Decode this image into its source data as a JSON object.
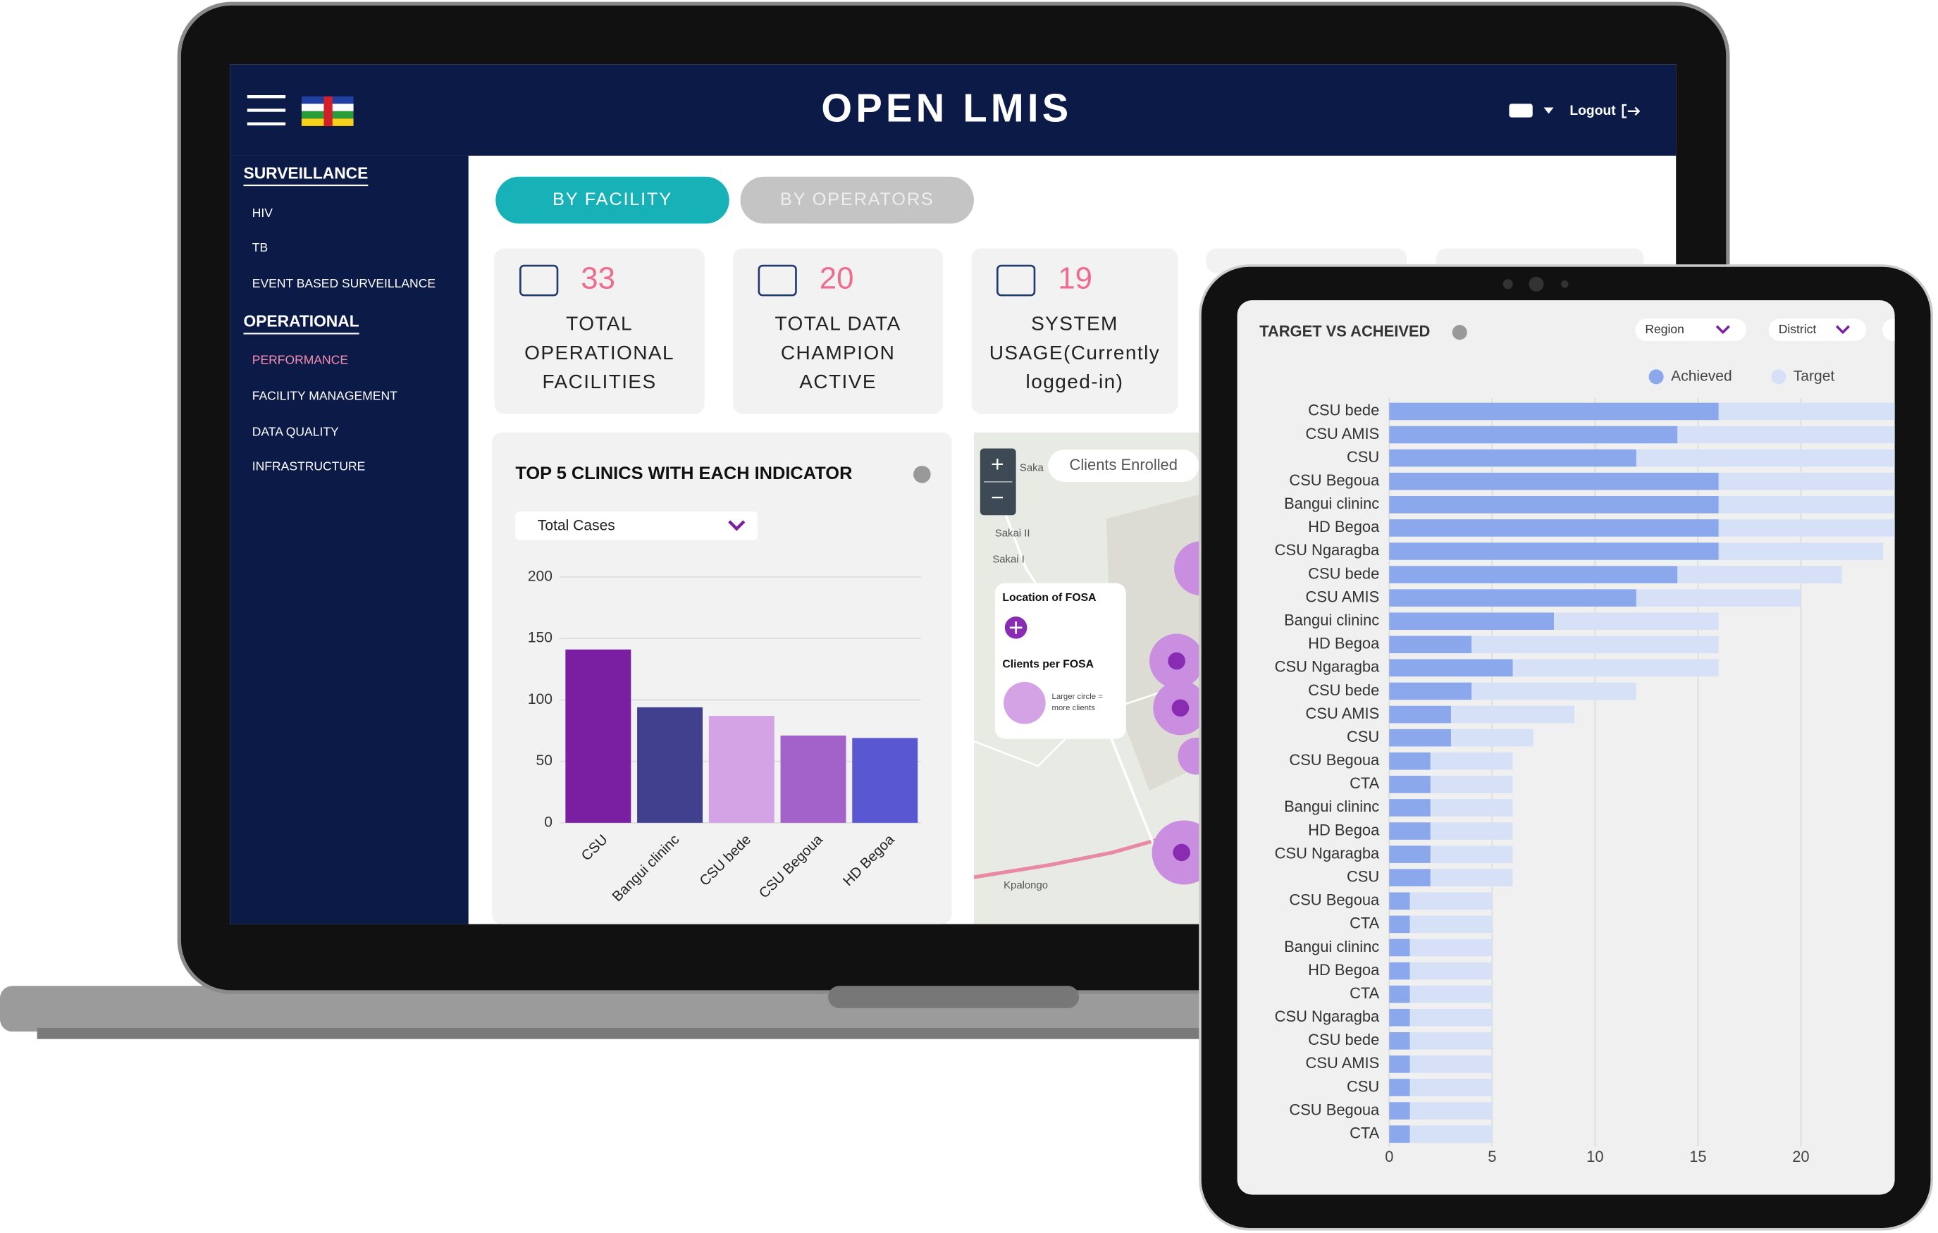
{
  "header": {
    "title": "OPEN LMIS",
    "logout": "Logout"
  },
  "sidebar": {
    "sections": [
      {
        "title": "SURVEILLANCE",
        "items": [
          "HIV",
          "TB",
          "EVENT BASED SURVEILLANCE"
        ]
      },
      {
        "title": "OPERATIONAL",
        "items": [
          "PERFORMANCE",
          "FACILITY MANAGEMENT",
          "DATA QUALITY",
          "INFRASTRUCTURE"
        ],
        "active": 0
      }
    ]
  },
  "tabs": [
    "BY FACILITY",
    "BY OPERATORS"
  ],
  "active_tab": 0,
  "stats": [
    {
      "value": 33,
      "label": [
        "TOTAL",
        "OPERATIONAL",
        "FACILITIES"
      ]
    },
    {
      "value": 20,
      "label": [
        "TOTAL DATA",
        "CHAMPION",
        "ACTIVE"
      ]
    },
    {
      "value": 19,
      "label": [
        "SYSTEM",
        "USAGE(Currently",
        "logged-in)"
      ]
    }
  ],
  "clinics_chart": {
    "type": "bar",
    "title": "TOP 5 CLINICS WITH EACH INDICATOR",
    "dropdown": "Total Cases",
    "categories": [
      "CSU",
      "Bangui clininc",
      "CSU bede",
      "CSU Begoua",
      "HD Begoa"
    ],
    "values": [
      141,
      94,
      87,
      71,
      69
    ],
    "colors": [
      "#7b1fa2",
      "#40408f",
      "#d4a3e6",
      "#a362c9",
      "#5a57d3"
    ],
    "ylim": [
      0,
      200
    ],
    "yticks": [
      0,
      50,
      100,
      150,
      200
    ],
    "grid": true
  },
  "map": {
    "title": "Clients Enrolled",
    "zoom_in": "+",
    "zoom_out": "−",
    "places": [
      "Saka",
      "Sakai II",
      "Sakai I",
      "Kpalongo"
    ],
    "legend": {
      "title": "Location of FOSA",
      "size_title": "Clients per FOSA",
      "size_note": [
        "Larger circle =",
        "more clients"
      ]
    }
  },
  "target_chart": {
    "type": "hbar",
    "title": "TARGET VS ACHEIVED",
    "filters": [
      "Region",
      "District"
    ],
    "categories": [
      "CSU bede",
      "CSU AMIS",
      "CSU",
      "CSU Begoua",
      "Bangui clininc",
      "HD Begoa",
      "CSU Ngaragba",
      "CSU bede",
      "CSU AMIS",
      "Bangui clininc",
      "HD Begoa",
      "CSU Ngaragba",
      "CSU bede",
      "CSU AMIS",
      "CSU",
      "CSU Begoua",
      "CTA",
      "Bangui clininc",
      "HD Begoa",
      "CSU Ngaragba",
      "CSU",
      "CSU Begoua",
      "CTA",
      "Bangui clininc",
      "HD Begoa",
      "CTA",
      "CSU Ngaragba",
      "CSU bede",
      "CSU AMIS",
      "CSU",
      "CSU Begoua",
      "CTA"
    ],
    "series": [
      {
        "name": "Achieved",
        "color": "#8ca8ec",
        "values": [
          16,
          14,
          12,
          16,
          16,
          16,
          16,
          14,
          12,
          8,
          4,
          6,
          4,
          3,
          3,
          2,
          2,
          2,
          2,
          2,
          2,
          1,
          1,
          1,
          1,
          1,
          1,
          1,
          1,
          1,
          1,
          1
        ]
      },
      {
        "name": "Target",
        "color": "#d6e1f7",
        "values": [
          25,
          25,
          25,
          25,
          25,
          25,
          24,
          22,
          20,
          16,
          16,
          16,
          12,
          9,
          7,
          6,
          6,
          6,
          6,
          6,
          6,
          5,
          5,
          5,
          5,
          5,
          5,
          5,
          5,
          5,
          5,
          5
        ]
      }
    ],
    "xlim": [
      0,
      24.5
    ],
    "xticks": [
      0,
      5,
      10,
      15,
      20
    ],
    "grid": true
  }
}
